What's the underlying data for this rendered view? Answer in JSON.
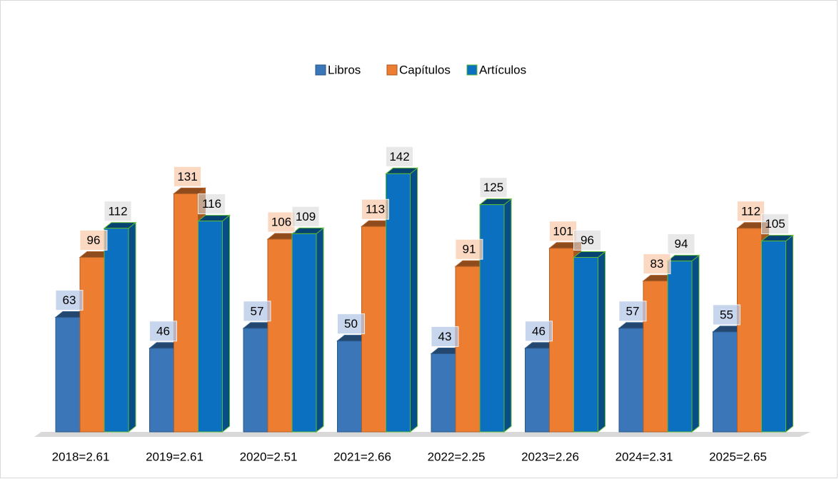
{
  "chart_data": {
    "type": "bar3d",
    "categories": [
      "2018=2.61",
      "2019=2.61",
      "2020=2.51",
      "2021=2.66",
      "2022=2.25",
      "2023=2.26",
      "2024=2.31",
      "2025=2.65"
    ],
    "series": [
      {
        "name": "Libros",
        "color": "#3a76b8",
        "values": [
          63,
          46,
          57,
          50,
          43,
          46,
          57,
          55
        ]
      },
      {
        "name": "Capítulos",
        "color": "#ed7d31",
        "values": [
          96,
          131,
          106,
          113,
          91,
          101,
          83,
          112
        ]
      },
      {
        "name": "Artículos",
        "color": "#0a70bf",
        "values": [
          112,
          116,
          109,
          142,
          125,
          96,
          94,
          105
        ]
      }
    ],
    "ylim": [
      0,
      150
    ],
    "legend": "top"
  }
}
